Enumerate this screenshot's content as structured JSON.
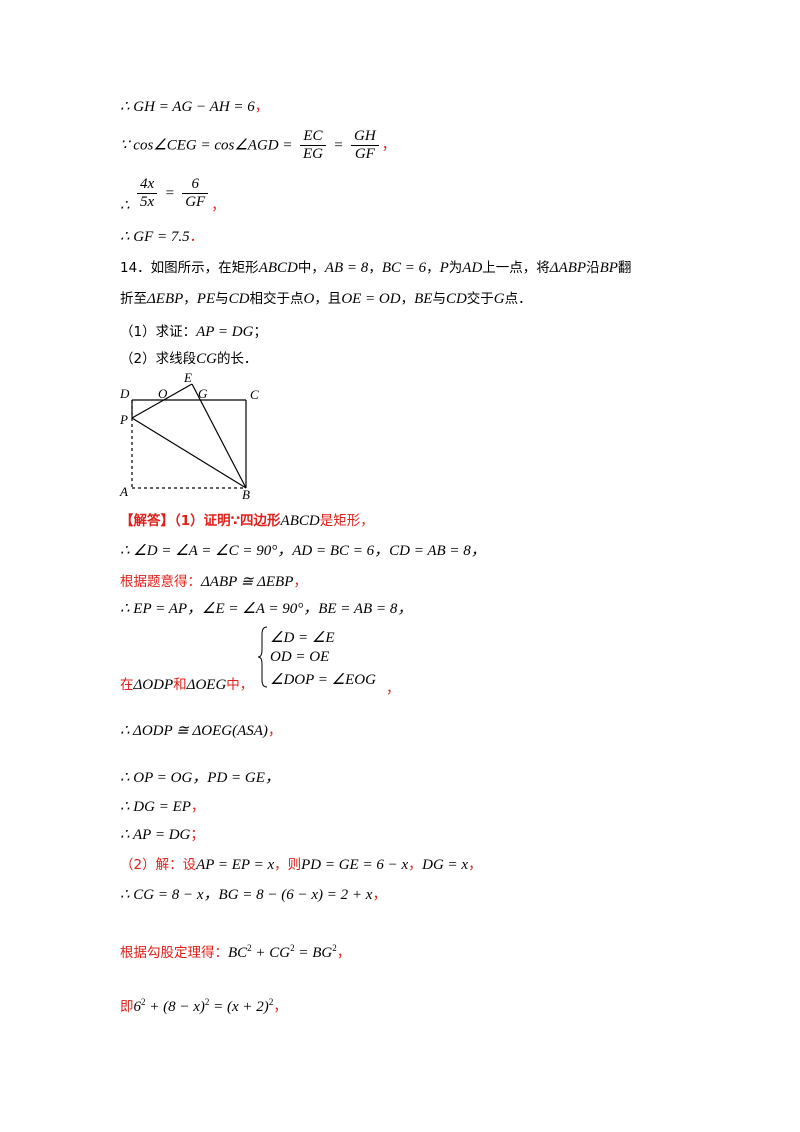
{
  "lines": {
    "l1": "∴ GH = AG − AH = 6",
    "l2_pre": "∵ cos∠CEG = cos∠AGD =",
    "l2_f1_num": "EC",
    "l2_f1_den": "EG",
    "l2_eq": "=",
    "l2_f2_num": "GH",
    "l2_f2_den": "GF",
    "l3_pre": "∴",
    "l3_f1_num": "4x",
    "l3_f1_den": "5x",
    "l3_eq": "=",
    "l3_f2_num": "6",
    "l3_f2_den": "GF",
    "l4": "∴ GF = 7.5",
    "comma": "，",
    "period": "．"
  },
  "problem": {
    "line1_a": "14．如图所示，在矩形",
    "line1_b": "ABCD",
    "line1_c": "中，",
    "line1_d": "AB = 8",
    "line1_e": "，",
    "line1_f": "BC = 6",
    "line1_g": "，",
    "line1_h": "P",
    "line1_i": "为",
    "line1_j": "AD",
    "line1_k": "上一点，将",
    "line1_l": "ΔABP",
    "line1_m": "沿",
    "line1_n": "BP",
    "line1_o": "翻",
    "line2_a": "折至",
    "line2_b": "ΔEBP",
    "line2_c": "，",
    "line2_d": "PE",
    "line2_e": "与",
    "line2_f": "CD",
    "line2_g": "相交于点",
    "line2_h": "O",
    "line2_i": "，且",
    "line2_j": "OE = OD",
    "line2_k": "，",
    "line2_l": "BE",
    "line2_m": "与",
    "line2_n": "CD",
    "line2_o": "交于",
    "line2_p": "G",
    "line2_q": "点．",
    "q1_a": "（1）求证：",
    "q1_b": "AP = DG",
    "q1_c": "；",
    "q2_a": "（2）求线段",
    "q2_b": "CG",
    "q2_c": "的长．"
  },
  "figure": {
    "labels": {
      "D": "D",
      "O": "O",
      "E": "E",
      "G": "G",
      "C": "C",
      "P": "P",
      "A": "A",
      "B": "B"
    }
  },
  "solution": {
    "s1_a": "【解答】（1）证明∵四边形",
    "s1_b": "ABCD",
    "s1_c": "是矩形，",
    "s2": "∴ ∠D = ∠A = ∠C = 90°，AD = BC = 6，CD = AB = 8，",
    "s3_a": "根据题意得：",
    "s3_b": "ΔABP ≅ ΔEBP",
    "s3_c": "，",
    "s4": "∴ EP = AP，∠E = ∠A = 90°，BE = AB = 8，",
    "sys1": "∠D = ∠E",
    "sys2": "OD = OE",
    "sys3": "∠DOP = ∠EOG",
    "s5_a": "在",
    "s5_b": "ΔODP",
    "s5_c": "和",
    "s5_d": "ΔOEG",
    "s5_e": "中，",
    "s5_f": "，",
    "s6": "∴ ΔODP ≅ ΔOEG(ASA)",
    "s6_c": "，",
    "s7": "∴ OP = OG，PD = GE，",
    "s8": "∴ DG = EP",
    "s8_c": "，",
    "s9": "∴ AP = DG",
    "s9_c": "；",
    "s10_a": "（2）解：设",
    "s10_b": "AP = EP = x",
    "s10_c": "，则",
    "s10_d": "PD = GE = 6 − x",
    "s10_e": "，",
    "s10_f": "DG = x",
    "s10_g": "，",
    "s11": "∴ CG = 8 − x，BG = 8 − (6 − x) = 2 + x",
    "s11_c": "，",
    "s12_a": "根据勾股定理得：",
    "s12_b1": "BC",
    "s12_b2": "2",
    "s12_b3": " + CG",
    "s12_b4": "2",
    "s12_b5": " = BG",
    "s12_b6": "2",
    "s12_c": "，",
    "s13_a": "即",
    "s13_b1": "6",
    "s13_b2": "2",
    "s13_b3": " + (8 − x)",
    "s13_b4": "2",
    "s13_b5": " = (x + 2)",
    "s13_b6": "2",
    "s13_c": "，"
  }
}
